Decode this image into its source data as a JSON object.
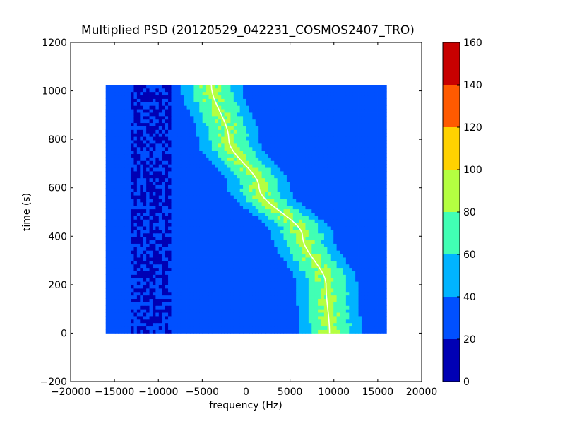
{
  "chart_data": {
    "type": "heatmap",
    "title": "Multiplied PSD (20120529_042231_COSMOS2407_TRO)",
    "xlabel": "frequency (Hz)",
    "ylabel": "time (s)",
    "xlim": [
      -20000,
      20000
    ],
    "ylim": [
      -200,
      1200
    ],
    "x_ticks": [
      -20000,
      -15000,
      -10000,
      -5000,
      0,
      5000,
      10000,
      15000,
      20000
    ],
    "x_tick_labels": [
      "−20000",
      "−15000",
      "−10000",
      "−5000",
      "0",
      "5000",
      "10000",
      "15000",
      "20000"
    ],
    "y_ticks": [
      -200,
      0,
      200,
      400,
      600,
      800,
      1000,
      1200
    ],
    "y_tick_labels": [
      "−200",
      "0",
      "200",
      "400",
      "600",
      "800",
      "1000",
      "1200"
    ],
    "data_extent": {
      "x": [
        -16000,
        16000
      ],
      "y": [
        0,
        1025
      ]
    },
    "grid": false,
    "colorbar": {
      "levels": [
        0,
        20,
        40,
        60,
        80,
        100,
        120,
        140,
        160
      ],
      "tick_labels": [
        "0",
        "20",
        "40",
        "60",
        "80",
        "100",
        "120",
        "140",
        "160"
      ],
      "colors": [
        "#0000b4",
        "#0050ff",
        "#00b4ff",
        "#41ffb4",
        "#b4ff41",
        "#ffd200",
        "#ff5a00",
        "#c80000"
      ]
    },
    "features": {
      "background_level": 28,
      "low_band": {
        "x_range": [
          -13000,
          -8500
        ],
        "level": 12
      },
      "main_trace": {
        "description_points": [
          {
            "y": 0,
            "x": 9600
          },
          {
            "y": 200,
            "x": 9200
          },
          {
            "y": 400,
            "x": 6500
          },
          {
            "y": 600,
            "x": 1500
          },
          {
            "y": 800,
            "x": -2000
          },
          {
            "y": 1025,
            "x": -4000
          }
        ],
        "half_width_core": 1800,
        "half_width_outer": 3500,
        "core_level": 85,
        "outer_level": 65
      }
    }
  }
}
